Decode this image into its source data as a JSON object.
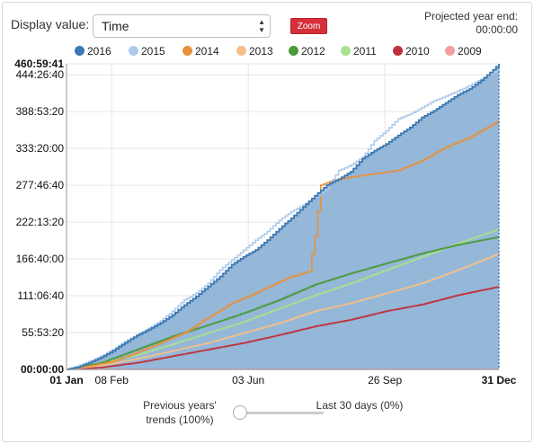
{
  "controls": {
    "display_label": "Display value:",
    "display_value": "Time",
    "zoom_label": "Zoom",
    "projected_label": "Projected year end:",
    "projected_value": "00:00:00"
  },
  "slider": {
    "left_label": "Previous years' trends (100%)",
    "right_label": "Last 30 days (0%)",
    "value": 0
  },
  "chart_data": {
    "type": "area",
    "x_axis": {
      "ticks": [
        {
          "day": 1,
          "label": "01 Jan",
          "bold": true
        },
        {
          "day": 39,
          "label": "08 Feb",
          "bold": false
        },
        {
          "day": 154,
          "label": "03 Jun",
          "bold": false
        },
        {
          "day": 269,
          "label": "26 Sep",
          "bold": false
        },
        {
          "day": 365,
          "label": "31 Dec",
          "bold": true
        }
      ],
      "range_days": [
        1,
        365
      ]
    },
    "y_axis": {
      "unit": "hours",
      "ticks": [
        {
          "value": 0,
          "label": "00:00:00",
          "bold": true
        },
        {
          "value": 55.5556,
          "label": "55:53:20"
        },
        {
          "value": 111.1111,
          "label": "111:06:40"
        },
        {
          "value": 166.6667,
          "label": "166:40:00"
        },
        {
          "value": 222.2222,
          "label": "222:13:20"
        },
        {
          "value": 277.7778,
          "label": "277:46:40"
        },
        {
          "value": 333.3333,
          "label": "333:20:00"
        },
        {
          "value": 388.8889,
          "label": "388:53:20"
        },
        {
          "value": 444.4444,
          "label": "444:26:40"
        },
        {
          "value": 460.9947,
          "label": "460:59:41",
          "bold": true
        }
      ],
      "range": [
        0,
        460.9947
      ]
    },
    "series": [
      {
        "name": "2016",
        "color": "#3a78b2",
        "fill": "#8fb3d6",
        "days": [
          1,
          10,
          20,
          30,
          40,
          50,
          60,
          70,
          80,
          90,
          100,
          110,
          120,
          130,
          140,
          150,
          160,
          170,
          180,
          190,
          200,
          210,
          220,
          230,
          240,
          250,
          260,
          270,
          280,
          290,
          300,
          310,
          320,
          330,
          340,
          350,
          360,
          365
        ],
        "values": [
          0,
          3,
          10,
          18,
          28,
          40,
          51,
          60,
          70,
          82,
          97,
          110,
          125,
          140,
          158,
          170,
          180,
          195,
          212,
          228,
          245,
          262,
          278,
          287,
          298,
          318,
          330,
          340,
          353,
          365,
          380,
          390,
          402,
          414,
          423,
          436,
          452,
          461
        ]
      },
      {
        "name": "2015",
        "color": "#aecbec",
        "days": [
          1,
          10,
          20,
          30,
          40,
          50,
          60,
          70,
          80,
          90,
          100,
          110,
          120,
          130,
          140,
          150,
          160,
          170,
          180,
          190,
          200,
          210,
          220,
          230,
          240,
          250,
          260,
          270,
          280,
          290,
          300,
          310,
          320,
          330,
          340,
          350,
          360,
          365
        ],
        "values": [
          0,
          5,
          12,
          20,
          30,
          42,
          52,
          62,
          73,
          88,
          105,
          115,
          130,
          150,
          165,
          180,
          195,
          208,
          225,
          238,
          248,
          260,
          273,
          300,
          308,
          320,
          345,
          360,
          378,
          385,
          395,
          405,
          412,
          420,
          428,
          438,
          448,
          452
        ]
      },
      {
        "name": "2014",
        "color": "#e8913a",
        "days": [
          1,
          20,
          40,
          60,
          80,
          100,
          120,
          140,
          160,
          180,
          190,
          200,
          205,
          210,
          215,
          225,
          240,
          260,
          280,
          300,
          320,
          340,
          365
        ],
        "values": [
          0,
          5,
          12,
          25,
          40,
          55,
          78,
          100,
          115,
          132,
          140,
          145,
          148,
          200,
          278,
          285,
          290,
          295,
          300,
          315,
          335,
          350,
          375
        ]
      },
      {
        "name": "2013",
        "color": "#f4bf8a",
        "days": [
          1,
          30,
          60,
          90,
          120,
          150,
          180,
          210,
          240,
          270,
          300,
          330,
          365
        ],
        "values": [
          0,
          6,
          16,
          28,
          40,
          55,
          70,
          88,
          100,
          115,
          130,
          150,
          175
        ]
      },
      {
        "name": "2012",
        "color": "#4a9a3a",
        "days": [
          1,
          30,
          60,
          90,
          120,
          150,
          180,
          210,
          240,
          270,
          300,
          330,
          365
        ],
        "values": [
          0,
          10,
          30,
          50,
          67,
          85,
          105,
          128,
          145,
          160,
          175,
          188,
          200
        ]
      },
      {
        "name": "2011",
        "color": "#a8e08f",
        "days": [
          1,
          30,
          60,
          90,
          120,
          150,
          180,
          210,
          240,
          270,
          300,
          330,
          365
        ],
        "values": [
          0,
          9,
          22,
          38,
          55,
          72,
          92,
          112,
          130,
          150,
          170,
          190,
          212
        ]
      },
      {
        "name": "2010",
        "color": "#c0303a",
        "days": [
          1,
          30,
          60,
          90,
          120,
          150,
          180,
          210,
          240,
          270,
          300,
          330,
          365
        ],
        "values": [
          0,
          3,
          10,
          20,
          30,
          40,
          52,
          65,
          75,
          88,
          98,
          112,
          125
        ]
      },
      {
        "name": "2009",
        "color": "#f0a0a0",
        "days": [
          1,
          365
        ],
        "values": [
          0,
          0
        ]
      }
    ]
  }
}
